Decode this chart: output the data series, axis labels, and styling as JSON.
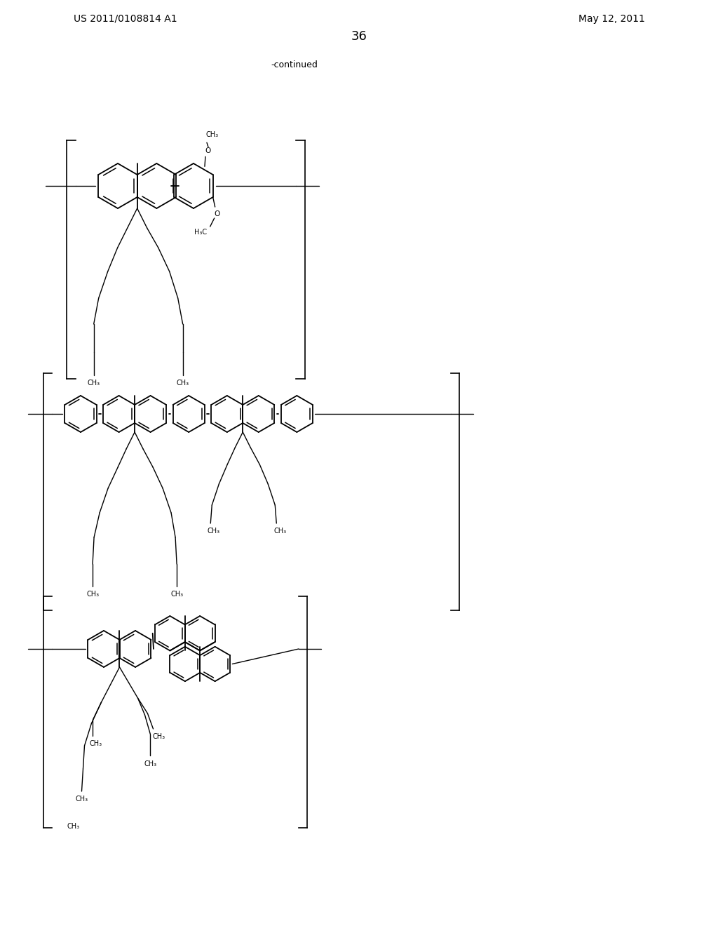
{
  "page_header_left": "US 2011/0108814 A1",
  "page_header_right": "May 12, 2011",
  "page_number": "36",
  "continued_text": "-continued",
  "background_color": "#ffffff",
  "line_color": "#000000",
  "font_size_header": 10,
  "font_size_page_num": 13,
  "font_size_continued": 9,
  "font_size_label": 7.5,
  "lw_ring": 1.3,
  "lw_chain": 1.0,
  "lw_bracket": 1.2
}
